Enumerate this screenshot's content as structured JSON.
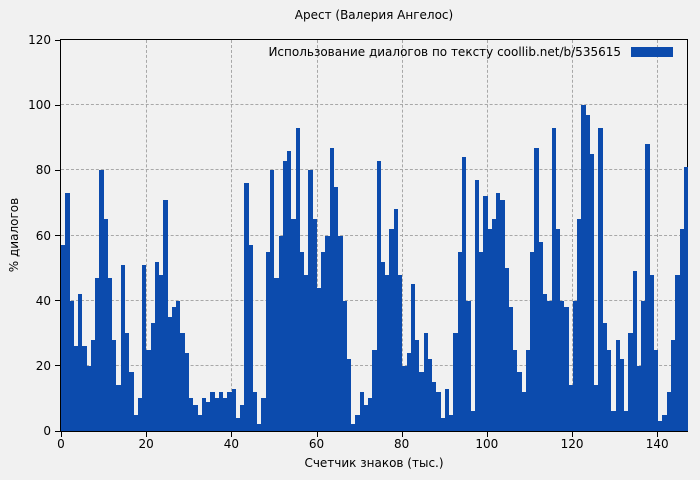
{
  "title": "Арест (Валерия Ангелос)",
  "legend": {
    "label": "Использование диалогов по тексту  coollib.net/b/535615"
  },
  "axes": {
    "x_label": "Счетчик знаков (тыс.)",
    "y_label": "% диалогов"
  },
  "colors": {
    "bar": "#0c4bad",
    "background": "#f1f1f1",
    "grid": "#a8a8a8"
  },
  "chart_data": {
    "type": "bar",
    "title": "Арест (Валерия Ангелос)",
    "xlabel": "Счетчик знаков (тыс.)",
    "ylabel": "% диалогов",
    "legend_label": "Использование диалогов по тексту  coollib.net/b/535615",
    "legend_position": "top-right",
    "grid": true,
    "ylim": [
      0,
      120
    ],
    "xlim": [
      0,
      147
    ],
    "y_ticks": [
      0,
      20,
      40,
      60,
      80,
      100,
      120
    ],
    "x_ticks": [
      0,
      20,
      40,
      60,
      80,
      100,
      120,
      140
    ],
    "x_start": 0,
    "x_step": 1,
    "values": [
      57,
      73,
      40,
      26,
      42,
      26,
      20,
      28,
      47,
      80,
      65,
      47,
      28,
      14,
      51,
      30,
      18,
      5,
      10,
      51,
      25,
      33,
      52,
      48,
      71,
      35,
      38,
      40,
      30,
      24,
      10,
      8,
      5,
      10,
      9,
      12,
      10,
      12,
      10,
      12,
      13,
      4,
      8,
      76,
      57,
      12,
      2,
      10,
      55,
      80,
      47,
      60,
      83,
      86,
      65,
      93,
      55,
      48,
      80,
      65,
      44,
      55,
      60,
      87,
      75,
      60,
      40,
      22,
      2,
      5,
      12,
      8,
      10,
      25,
      83,
      52,
      48,
      62,
      68,
      48,
      20,
      24,
      45,
      28,
      18,
      30,
      22,
      15,
      12,
      4,
      13,
      5,
      30,
      55,
      84,
      40,
      6,
      77,
      55,
      72,
      62,
      65,
      73,
      71,
      50,
      38,
      25,
      18,
      12,
      25,
      55,
      87,
      58,
      42,
      40,
      93,
      62,
      40,
      38,
      14,
      40,
      65,
      100,
      97,
      85,
      14,
      93,
      33,
      25,
      6,
      28,
      22,
      6,
      30,
      49,
      20,
      40,
      88,
      48,
      25,
      3,
      5,
      12,
      28,
      48,
      62,
      81
    ]
  }
}
